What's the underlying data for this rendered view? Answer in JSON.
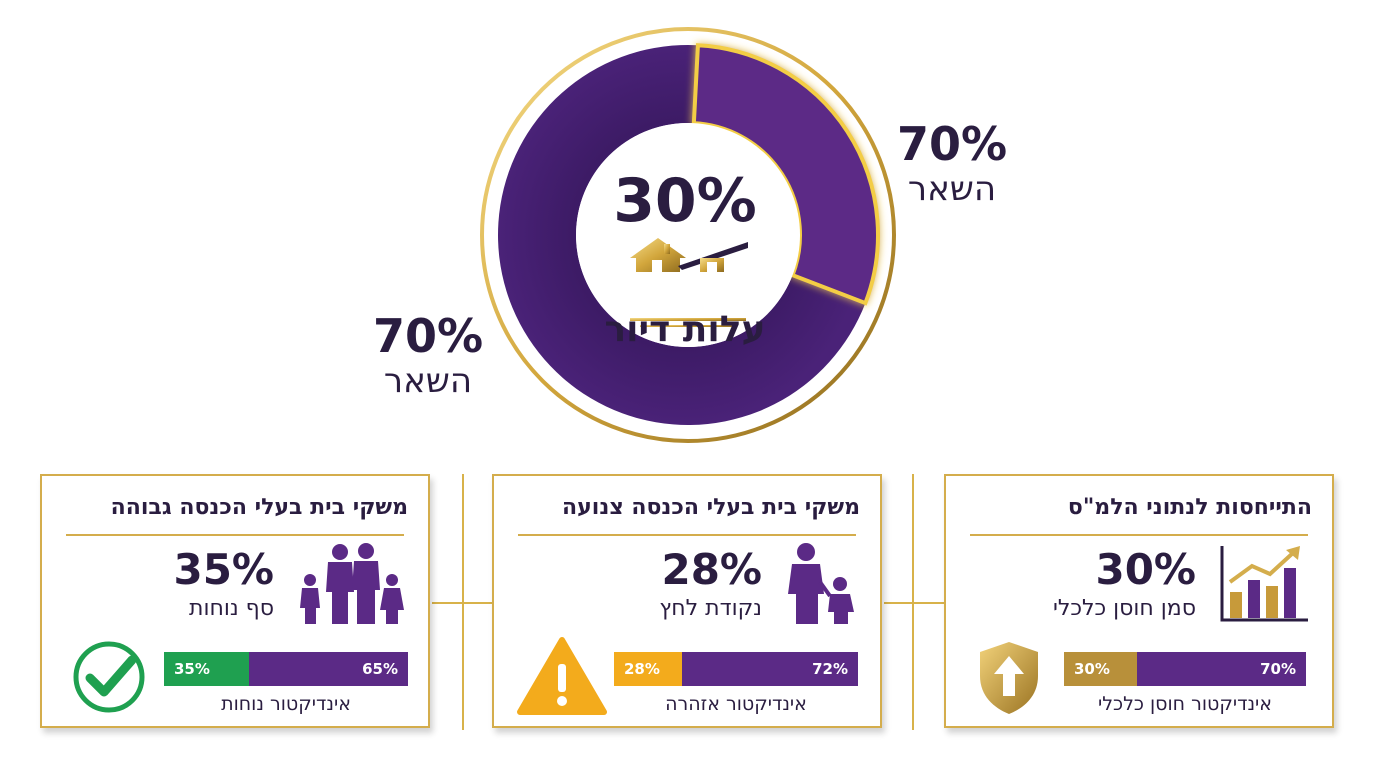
{
  "donut": {
    "center_percent": "30%",
    "center_label": "עלות דיור",
    "rest_top": {
      "percent": "70%",
      "label": "השאר"
    },
    "rest_bottom": {
      "percent": "70%",
      "label": "השאר"
    }
  },
  "chart_data": {
    "type": "pie",
    "slices": [
      {
        "label": "עלות דיור",
        "value": 30
      },
      {
        "label": "השאר",
        "value": 70
      }
    ]
  },
  "cards": [
    {
      "title": "התייחסות לנתוני הלמ\"ס",
      "percent": "30%",
      "subtitle": "סמן חוסן כלכלי",
      "bar_left": "30%",
      "bar_right": "70%",
      "bar_left_value": 30,
      "bar_left_color": "#b8903a",
      "indicator": "אינדיקטור חוסן כלכלי",
      "main_icon": "bar-chart-icon",
      "status_icon": "shield-arrow-icon"
    },
    {
      "title": "משקי בית בעלי הכנסה צנועה",
      "percent": "28%",
      "subtitle": "נקודת לחץ",
      "bar_left": "28%",
      "bar_right": "72%",
      "bar_left_value": 28,
      "bar_left_color": "#f3ab1c",
      "indicator": "אינדיקטור אזהרה",
      "main_icon": "parent-child-icon",
      "status_icon": "warning-icon"
    },
    {
      "title": "משקי בית בעלי הכנסה גבוהה",
      "percent": "35%",
      "subtitle": "סף נוחות",
      "bar_left": "35%",
      "bar_right": "65%",
      "bar_left_value": 35,
      "bar_left_color": "#1fa050",
      "indicator": "אינדיקטור נוחות",
      "main_icon": "family-icon",
      "status_icon": "checkmark-icon"
    }
  ],
  "colors": {
    "purple": "#5b2a86",
    "dark_purple": "#3a1a63",
    "gold": "#d4ad4c",
    "text": "#2a1d40"
  }
}
